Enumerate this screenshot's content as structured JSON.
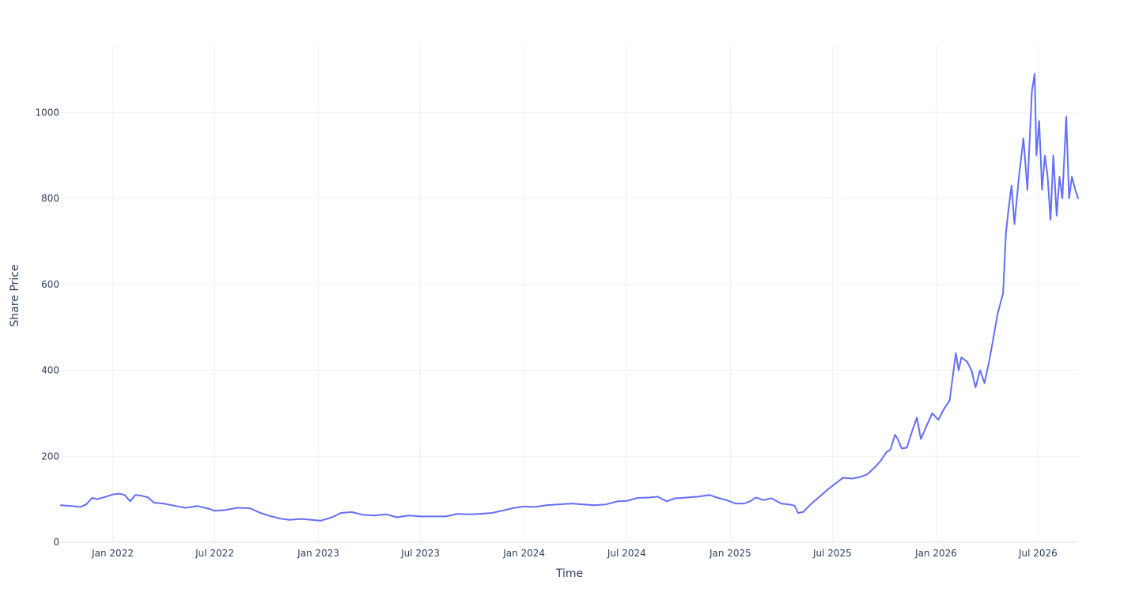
{
  "chart_data": {
    "type": "line",
    "title": "",
    "xlabel": "Time",
    "ylabel": "Share Price",
    "x_range": [
      "2021-10-01",
      "2026-09-10"
    ],
    "ylim": [
      0,
      1155
    ],
    "grid": true,
    "y_ticks": [
      0,
      200,
      400,
      600,
      800,
      1000
    ],
    "x_ticks": [
      {
        "date": "2022-01-01",
        "label": "Jan 2022"
      },
      {
        "date": "2022-07-01",
        "label": "Jul 2022"
      },
      {
        "date": "2023-01-01",
        "label": "Jan 2023"
      },
      {
        "date": "2023-07-01",
        "label": "Jul 2023"
      },
      {
        "date": "2024-01-01",
        "label": "Jan 2024"
      },
      {
        "date": "2024-07-01",
        "label": "Jul 2024"
      },
      {
        "date": "2025-01-01",
        "label": "Jan 2025"
      },
      {
        "date": "2025-07-01",
        "label": "Jul 2025"
      },
      {
        "date": "2026-01-01",
        "label": "Jan 2026"
      },
      {
        "date": "2026-07-01",
        "label": "Jul 2026"
      }
    ],
    "series": [
      {
        "color": "#636efa",
        "points": [
          [
            "2021-10-01",
            86
          ],
          [
            "2021-10-20",
            84
          ],
          [
            "2021-11-05",
            82
          ],
          [
            "2021-11-15",
            88
          ],
          [
            "2021-11-25",
            103
          ],
          [
            "2021-12-05",
            100
          ],
          [
            "2021-12-20",
            106
          ],
          [
            "2022-01-01",
            111
          ],
          [
            "2022-01-12",
            113
          ],
          [
            "2022-01-22",
            110
          ],
          [
            "2022-02-01",
            95
          ],
          [
            "2022-02-10",
            110
          ],
          [
            "2022-02-22",
            108
          ],
          [
            "2022-03-05",
            104
          ],
          [
            "2022-03-15",
            92
          ],
          [
            "2022-04-01",
            90
          ],
          [
            "2022-04-20",
            85
          ],
          [
            "2022-05-10",
            80
          ],
          [
            "2022-06-01",
            84
          ],
          [
            "2022-06-20",
            78
          ],
          [
            "2022-07-01",
            73
          ],
          [
            "2022-07-20",
            75
          ],
          [
            "2022-08-10",
            80
          ],
          [
            "2022-09-01",
            79
          ],
          [
            "2022-09-20",
            68
          ],
          [
            "2022-10-10",
            60
          ],
          [
            "2022-10-25",
            55
          ],
          [
            "2022-11-10",
            52
          ],
          [
            "2022-12-01",
            54
          ],
          [
            "2022-12-20",
            52
          ],
          [
            "2023-01-05",
            50
          ],
          [
            "2023-01-25",
            58
          ],
          [
            "2023-02-10",
            68
          ],
          [
            "2023-03-01",
            70
          ],
          [
            "2023-03-20",
            64
          ],
          [
            "2023-04-10",
            62
          ],
          [
            "2023-05-01",
            65
          ],
          [
            "2023-05-20",
            58
          ],
          [
            "2023-06-10",
            62
          ],
          [
            "2023-07-01",
            60
          ],
          [
            "2023-07-25",
            60
          ],
          [
            "2023-08-15",
            60
          ],
          [
            "2023-09-05",
            66
          ],
          [
            "2023-09-25",
            65
          ],
          [
            "2023-10-15",
            66
          ],
          [
            "2023-11-05",
            68
          ],
          [
            "2023-11-25",
            74
          ],
          [
            "2023-12-15",
            80
          ],
          [
            "2024-01-01",
            83
          ],
          [
            "2024-01-20",
            82
          ],
          [
            "2024-02-10",
            86
          ],
          [
            "2024-03-01",
            88
          ],
          [
            "2024-03-25",
            90
          ],
          [
            "2024-04-15",
            88
          ],
          [
            "2024-05-05",
            86
          ],
          [
            "2024-05-25",
            88
          ],
          [
            "2024-06-15",
            95
          ],
          [
            "2024-07-01",
            96
          ],
          [
            "2024-07-20",
            103
          ],
          [
            "2024-08-10",
            104
          ],
          [
            "2024-08-25",
            106
          ],
          [
            "2024-09-10",
            95
          ],
          [
            "2024-09-25",
            102
          ],
          [
            "2024-10-15",
            104
          ],
          [
            "2024-11-05",
            106
          ],
          [
            "2024-11-25",
            110
          ],
          [
            "2024-12-10",
            103
          ],
          [
            "2024-12-25",
            98
          ],
          [
            "2025-01-10",
            90
          ],
          [
            "2025-01-25",
            90
          ],
          [
            "2025-02-05",
            95
          ],
          [
            "2025-02-15",
            104
          ],
          [
            "2025-03-01",
            98
          ],
          [
            "2025-03-15",
            102
          ],
          [
            "2025-04-01",
            90
          ],
          [
            "2025-04-15",
            88
          ],
          [
            "2025-04-25",
            85
          ],
          [
            "2025-05-01",
            68
          ],
          [
            "2025-05-10",
            70
          ],
          [
            "2025-05-25",
            90
          ],
          [
            "2025-06-10",
            108
          ],
          [
            "2025-06-25",
            125
          ],
          [
            "2025-07-05",
            135
          ],
          [
            "2025-07-20",
            150
          ],
          [
            "2025-08-05",
            148
          ],
          [
            "2025-08-20",
            152
          ],
          [
            "2025-09-01",
            158
          ],
          [
            "2025-09-15",
            175
          ],
          [
            "2025-09-25",
            190
          ],
          [
            "2025-10-05",
            210
          ],
          [
            "2025-10-12",
            215
          ],
          [
            "2025-10-20",
            250
          ],
          [
            "2025-10-25",
            240
          ],
          [
            "2025-11-01",
            218
          ],
          [
            "2025-11-10",
            220
          ],
          [
            "2025-11-20",
            260
          ],
          [
            "2025-11-28",
            290
          ],
          [
            "2025-12-05",
            240
          ],
          [
            "2025-12-15",
            270
          ],
          [
            "2025-12-25",
            300
          ],
          [
            "2026-01-05",
            285
          ],
          [
            "2026-01-15",
            310
          ],
          [
            "2026-01-25",
            330
          ],
          [
            "2026-02-05",
            440
          ],
          [
            "2026-02-10",
            400
          ],
          [
            "2026-02-15",
            430
          ],
          [
            "2026-02-25",
            420
          ],
          [
            "2026-03-05",
            400
          ],
          [
            "2026-03-12",
            360
          ],
          [
            "2026-03-20",
            400
          ],
          [
            "2026-03-28",
            370
          ],
          [
            "2026-04-05",
            420
          ],
          [
            "2026-04-12",
            470
          ],
          [
            "2026-04-20",
            530
          ],
          [
            "2026-04-30",
            580
          ],
          [
            "2026-05-05",
            720
          ],
          [
            "2026-05-10",
            780
          ],
          [
            "2026-05-15",
            830
          ],
          [
            "2026-05-20",
            740
          ],
          [
            "2026-05-28",
            850
          ],
          [
            "2026-06-05",
            940
          ],
          [
            "2026-06-12",
            820
          ],
          [
            "2026-06-20",
            1050
          ],
          [
            "2026-06-25",
            1090
          ],
          [
            "2026-06-28",
            900
          ],
          [
            "2026-07-03",
            980
          ],
          [
            "2026-07-08",
            820
          ],
          [
            "2026-07-13",
            900
          ],
          [
            "2026-07-18",
            850
          ],
          [
            "2026-07-23",
            750
          ],
          [
            "2026-07-28",
            900
          ],
          [
            "2026-08-03",
            760
          ],
          [
            "2026-08-08",
            850
          ],
          [
            "2026-08-13",
            800
          ],
          [
            "2026-08-20",
            990
          ],
          [
            "2026-08-25",
            800
          ],
          [
            "2026-08-30",
            850
          ],
          [
            "2026-09-05",
            820
          ],
          [
            "2026-09-10",
            800
          ]
        ]
      }
    ]
  }
}
